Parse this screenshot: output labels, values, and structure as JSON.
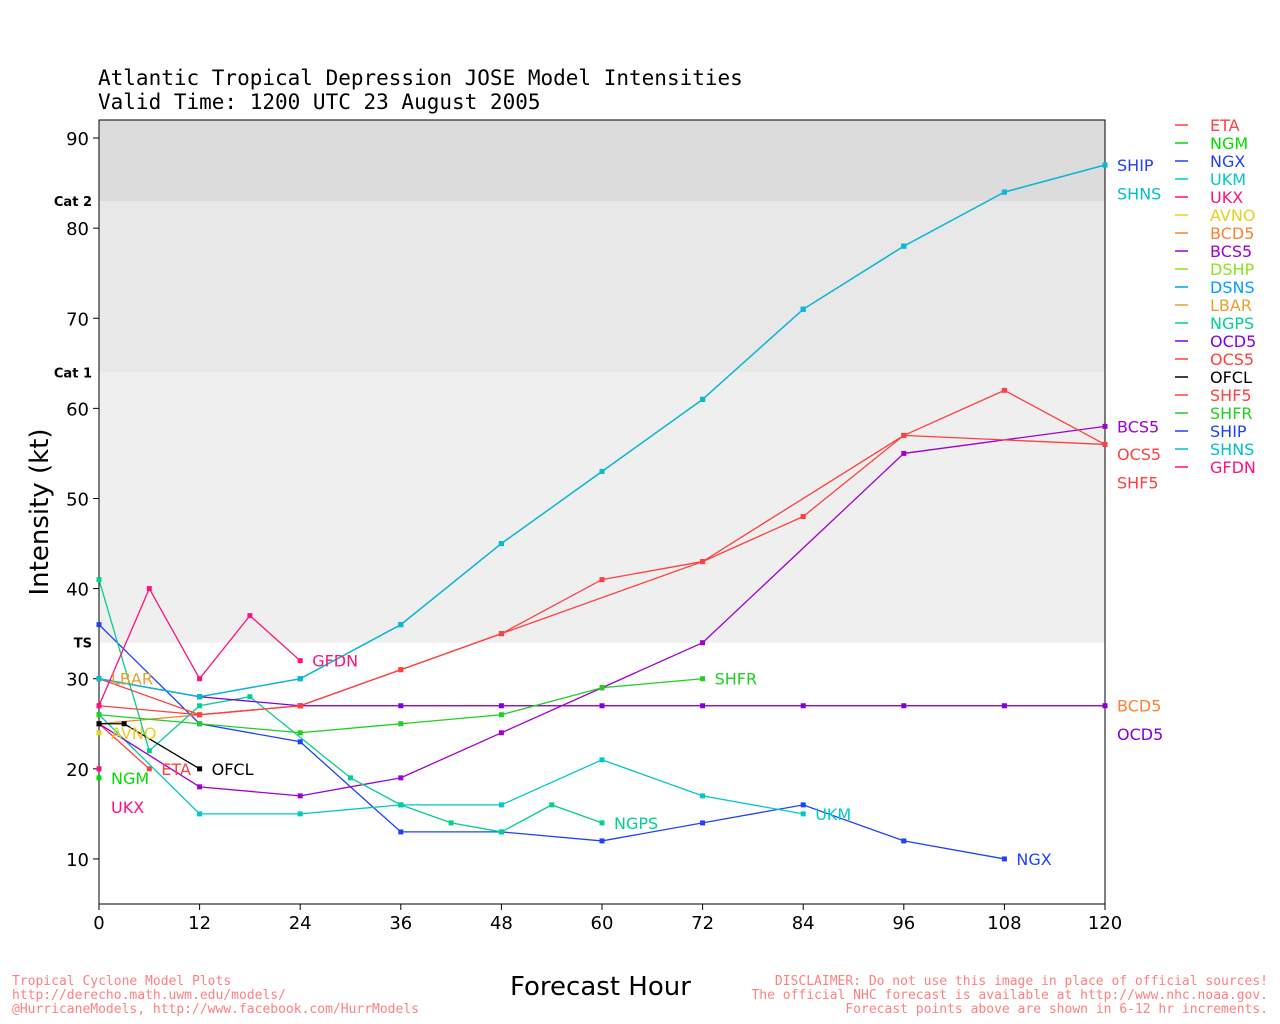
{
  "chart_data": {
    "type": "line",
    "title": "Atlantic Tropical Depression JOSE Model Intensities",
    "subtitle": "Valid Time: 1200 UTC 23 August 2005",
    "xlabel": "Forecast Hour",
    "ylabel": "Intensity (kt)",
    "xlim": [
      0,
      120
    ],
    "ylim": [
      5,
      92
    ],
    "xticks": [
      0,
      12,
      24,
      36,
      48,
      60,
      72,
      84,
      96,
      108,
      120
    ],
    "yticks": [
      10,
      20,
      30,
      40,
      50,
      60,
      70,
      80,
      90
    ],
    "bands": [
      {
        "label": "TS",
        "from": 34,
        "to": 64,
        "color": "#efefef"
      },
      {
        "label": "Cat 1",
        "from": 64,
        "to": 83,
        "color": "#e8e8e8"
      },
      {
        "label": "Cat 2",
        "from": 83,
        "to": 92,
        "color": "#dcdcdc"
      }
    ],
    "legend_position": "right",
    "series": [
      {
        "name": "ETA",
        "color": "#ff4040",
        "points": [
          [
            0,
            25
          ],
          [
            6,
            20
          ]
        ],
        "end_label": "ETA"
      },
      {
        "name": "NGM",
        "color": "#00dd00",
        "points": [
          [
            0,
            19
          ]
        ],
        "end_label": "NGM"
      },
      {
        "name": "NGX",
        "color": "#2040ff",
        "points": [
          [
            0,
            36
          ],
          [
            12,
            25
          ],
          [
            24,
            23
          ],
          [
            36,
            13
          ],
          [
            48,
            13
          ],
          [
            60,
            12
          ],
          [
            72,
            14
          ],
          [
            84,
            16
          ],
          [
            96,
            12
          ],
          [
            108,
            10
          ]
        ],
        "end_label": "NGX"
      },
      {
        "name": "UKM",
        "color": "#00c8c8",
        "points": [
          [
            0,
            26
          ],
          [
            12,
            15
          ],
          [
            24,
            15
          ],
          [
            36,
            16
          ],
          [
            48,
            16
          ],
          [
            60,
            21
          ],
          [
            72,
            17
          ],
          [
            84,
            15
          ]
        ],
        "end_label": "UKM"
      },
      {
        "name": "UKX",
        "color": "#ff1080",
        "points": [
          [
            0,
            20
          ]
        ],
        "end_label": "UKX"
      },
      {
        "name": "AVNO",
        "color": "#e6d020",
        "points": [
          [
            0,
            24
          ]
        ],
        "end_label": "AVNO"
      },
      {
        "name": "BCD5",
        "color": "#ff8030",
        "points": [
          [
            0,
            25
          ],
          [
            24,
            27
          ],
          [
            120,
            27
          ]
        ],
        "end_label": "BCD5"
      },
      {
        "name": "BCS5",
        "color": "#a000d0",
        "points": [
          [
            0,
            25
          ],
          [
            12,
            18
          ],
          [
            24,
            17
          ],
          [
            36,
            19
          ],
          [
            48,
            24
          ],
          [
            60,
            29
          ],
          [
            72,
            34
          ],
          [
            96,
            55
          ],
          [
            120,
            58
          ]
        ],
        "end_label": "BCS5"
      },
      {
        "name": "DSHP",
        "color": "#90e020",
        "points": [],
        "end_label": ""
      },
      {
        "name": "DSNS",
        "color": "#00a0ff",
        "points": [],
        "end_label": ""
      },
      {
        "name": "LBAR",
        "color": "#e8a030",
        "points": [
          [
            0,
            30
          ]
        ],
        "end_label": "LBAR"
      },
      {
        "name": "NGPS",
        "color": "#00d090",
        "points": [
          [
            0,
            41
          ],
          [
            6,
            22
          ],
          [
            12,
            27
          ],
          [
            18,
            28
          ],
          [
            30,
            19
          ],
          [
            36,
            16
          ],
          [
            42,
            14
          ],
          [
            48,
            13
          ],
          [
            54,
            16
          ],
          [
            60,
            14
          ]
        ],
        "end_label": "NGPS"
      },
      {
        "name": "OCD5",
        "color": "#8000e0",
        "points": [
          [
            0,
            30
          ],
          [
            12,
            28
          ],
          [
            24,
            27
          ],
          [
            36,
            27
          ],
          [
            48,
            27
          ],
          [
            60,
            27
          ],
          [
            72,
            27
          ],
          [
            84,
            27
          ],
          [
            96,
            27
          ],
          [
            108,
            27
          ],
          [
            120,
            27
          ]
        ],
        "end_label": "OCD5"
      },
      {
        "name": "OCS5",
        "color": "#ff4040",
        "points": [
          [
            0,
            30
          ],
          [
            12,
            26
          ],
          [
            24,
            27
          ],
          [
            36,
            31
          ],
          [
            48,
            35
          ],
          [
            72,
            43
          ],
          [
            96,
            57
          ],
          [
            120,
            56
          ]
        ],
        "end_label": "OCS5"
      },
      {
        "name": "OFCL",
        "color": "#000000",
        "points": [
          [
            0,
            25
          ],
          [
            3,
            25
          ],
          [
            12,
            20
          ]
        ],
        "end_label": "OFCL"
      },
      {
        "name": "SHF5",
        "color": "#ff4040",
        "points": [
          [
            0,
            27
          ],
          [
            12,
            26
          ],
          [
            24,
            27
          ],
          [
            36,
            31
          ],
          [
            48,
            35
          ],
          [
            60,
            41
          ],
          [
            72,
            43
          ],
          [
            84,
            48
          ],
          [
            96,
            57
          ],
          [
            108,
            62
          ],
          [
            120,
            56
          ]
        ],
        "end_label": "SHF5"
      },
      {
        "name": "SHFR",
        "color": "#20d020",
        "points": [
          [
            0,
            26
          ],
          [
            12,
            25
          ],
          [
            24,
            24
          ],
          [
            36,
            25
          ],
          [
            48,
            26
          ],
          [
            60,
            29
          ],
          [
            72,
            30
          ]
        ],
        "end_label": "SHFR"
      },
      {
        "name": "SHIP",
        "color": "#2040ff",
        "points": [
          [
            0,
            30
          ],
          [
            12,
            28
          ],
          [
            24,
            30
          ],
          [
            36,
            36
          ],
          [
            48,
            45
          ],
          [
            60,
            53
          ],
          [
            72,
            61
          ],
          [
            84,
            71
          ],
          [
            96,
            78
          ],
          [
            108,
            84
          ],
          [
            120,
            87
          ]
        ],
        "end_label": "SHIP"
      },
      {
        "name": "SHNS",
        "color": "#00c0d0",
        "points": [
          [
            0,
            30
          ],
          [
            12,
            28
          ],
          [
            24,
            30
          ],
          [
            36,
            36
          ],
          [
            48,
            45
          ],
          [
            60,
            53
          ],
          [
            72,
            61
          ],
          [
            84,
            71
          ],
          [
            96,
            78
          ],
          [
            108,
            84
          ],
          [
            120,
            87
          ]
        ],
        "end_label": "SHNS"
      },
      {
        "name": "GFDN",
        "color": "#ff1080",
        "points": [
          [
            0,
            27
          ],
          [
            6,
            40
          ],
          [
            12,
            30
          ],
          [
            18,
            37
          ],
          [
            24,
            32
          ]
        ],
        "end_label": "GFDN"
      }
    ]
  },
  "footer_left": [
    "Tropical Cyclone Model Plots",
    "http://derecho.math.uwm.edu/models/",
    "@HurricaneModels, http://www.facebook.com/HurrModels"
  ],
  "footer_right": [
    "DISCLAIMER: Do not use this image in place of official sources!",
    "The official NHC forecast is available at http://www.nhc.noaa.gov.",
    "Forecast points above are shown in 6-12 hr increments."
  ]
}
